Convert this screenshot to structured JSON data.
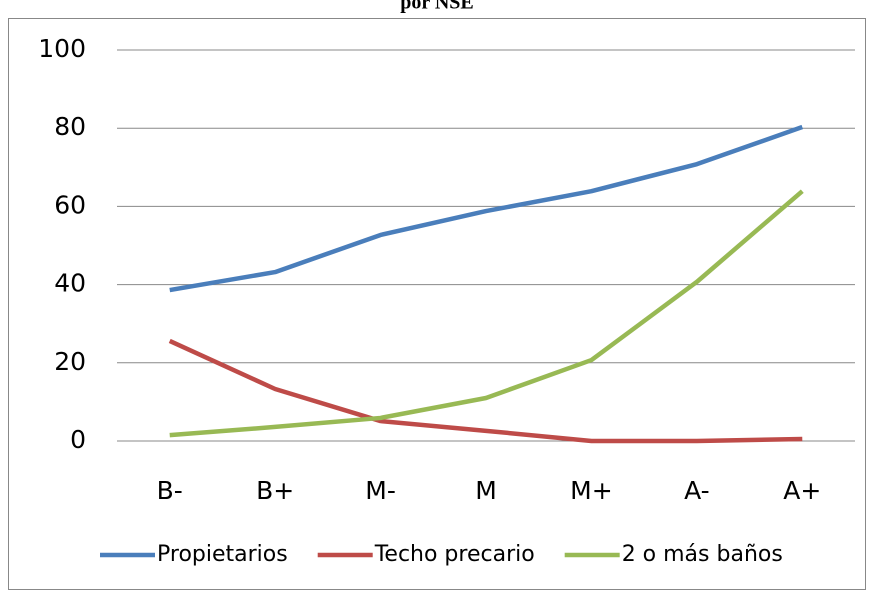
{
  "chart_data": {
    "type": "line",
    "title": "por NSE",
    "categories": [
      "B-",
      "B+",
      "M-",
      "M",
      "M+",
      "A-",
      "A+"
    ],
    "series": [
      {
        "name": "Propietarios",
        "color": "#4a7ebb",
        "values": [
          38.6,
          43.2,
          52.7,
          58.8,
          63.9,
          70.8,
          80.3
        ]
      },
      {
        "name": "Techo precario",
        "color": "#be4b48",
        "values": [
          25.6,
          13.3,
          5.1,
          2.6,
          0,
          0,
          0.5
        ]
      },
      {
        "name": "2 o más baños",
        "color": "#98b954",
        "values": [
          1.5,
          3.6,
          5.9,
          11,
          20.7,
          40.7,
          63.9
        ]
      }
    ],
    "ylim": [
      0,
      100
    ],
    "yticks": [
      0,
      20,
      40,
      60,
      80,
      100
    ],
    "grid": true,
    "legend": "bottom"
  }
}
